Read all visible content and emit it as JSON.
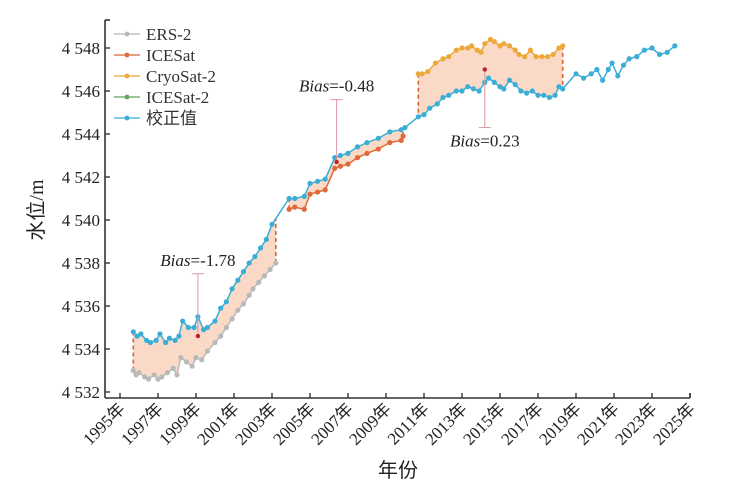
{
  "chart_data": {
    "type": "line",
    "title": "",
    "xlabel": "年份",
    "ylabel": "水位/m",
    "xlim": [
      1994.3,
      2025.6
    ],
    "ylim": [
      4531.8,
      4549.3
    ],
    "x_ticks": [
      1995,
      1997,
      1999,
      2001,
      2003,
      2005,
      2007,
      2009,
      2011,
      2013,
      2015,
      2017,
      2019,
      2021,
      2023,
      2025
    ],
    "x_tick_labels": [
      "1995年",
      "1997年",
      "1999年",
      "2001年",
      "2003年",
      "2005年",
      "2007年",
      "2009年",
      "2011年",
      "2013年",
      "2015年",
      "2017年",
      "2019年",
      "2021年",
      "2023年",
      "2025年"
    ],
    "y_ticks": [
      4532,
      4534,
      4536,
      4538,
      4540,
      4542,
      4544,
      4546,
      4548
    ],
    "y_tick_labels": [
      "4 532",
      "4 534",
      "4 536",
      "4 538",
      "4 540",
      "4 542",
      "4 544",
      "4 546",
      "4 548"
    ],
    "legend_position": "top-left",
    "grid": false,
    "colors": {
      "ERS-2": "#b9b9b9",
      "ICESat": "#e0693a",
      "CryoSat-2": "#eca93a",
      "ICESat-2": "#5fa85f",
      "校正值": "#3aaed6",
      "fill": "#f9d2bd",
      "bias_marker": "#c0202a",
      "bias_line": "#d89aa0"
    },
    "series": [
      {
        "name": "ERS-2",
        "x": [
          1995.7,
          1995.85,
          1996.0,
          1996.3,
          1996.5,
          1996.8,
          1997.0,
          1997.2,
          1997.5,
          1997.8,
          1998.0,
          1998.2,
          1998.5,
          1998.8,
          1999.0,
          1999.3,
          1999.6,
          2000.0,
          2000.3,
          2000.6,
          2000.9,
          2001.2,
          2001.5,
          2001.8,
          2002.0,
          2002.3,
          2002.6,
          2002.9,
          2003.2
        ],
        "y": [
          4533.0,
          4532.8,
          4532.9,
          4532.7,
          4532.6,
          4532.8,
          4532.6,
          4532.7,
          4532.9,
          4533.1,
          4532.8,
          4533.6,
          4533.4,
          4533.2,
          4533.6,
          4533.5,
          4533.9,
          4534.3,
          4534.6,
          4535.0,
          4535.4,
          4535.8,
          4536.1,
          4536.5,
          4536.8,
          4537.1,
          4537.4,
          4537.7,
          4538.0
        ]
      },
      {
        "name": "ICESat",
        "x": [
          2003.9,
          2004.2,
          2004.7,
          2005.0,
          2005.4,
          2005.8,
          2006.3,
          2006.6,
          2007.0,
          2007.5,
          2008.0,
          2008.6,
          2009.2,
          2009.8,
          2009.9
        ],
        "y": [
          4540.5,
          4540.6,
          4540.5,
          4541.2,
          4541.3,
          4541.4,
          4542.4,
          4542.5,
          4542.6,
          4542.9,
          4543.1,
          4543.3,
          4543.6,
          4543.7,
          4543.9
        ]
      },
      {
        "name": "CryoSat-2",
        "x": [
          2010.7,
          2010.9,
          2011.2,
          2011.6,
          2012.0,
          2012.3,
          2012.7,
          2013.0,
          2013.3,
          2013.5,
          2013.8,
          2014.0,
          2014.2,
          2014.5,
          2014.7,
          2015.0,
          2015.2,
          2015.5,
          2015.8,
          2016.0,
          2016.3,
          2016.6,
          2016.9,
          2017.2,
          2017.5,
          2017.8,
          2018.1,
          2018.3
        ],
        "y": [
          4546.8,
          4546.8,
          4546.9,
          4547.3,
          4547.5,
          4547.6,
          4547.9,
          4548.0,
          4548.0,
          4548.1,
          4547.9,
          4547.8,
          4548.2,
          4548.4,
          4548.3,
          4548.1,
          4548.2,
          4548.1,
          4547.9,
          4547.7,
          4547.6,
          4547.9,
          4547.6,
          4547.6,
          4547.6,
          4547.7,
          4548.0,
          4548.1
        ]
      },
      {
        "name": "ICESat-2",
        "x": [],
        "y": []
      },
      {
        "name": "校正值",
        "x": [
          1995.7,
          1995.9,
          1996.1,
          1996.4,
          1996.6,
          1996.9,
          1997.1,
          1997.4,
          1997.6,
          1997.9,
          1998.1,
          1998.3,
          1998.6,
          1998.9,
          1999.1,
          1999.4,
          1999.6,
          2000.0,
          2000.3,
          2000.6,
          2000.9,
          2001.2,
          2001.5,
          2001.8,
          2002.1,
          2002.4,
          2002.7,
          2003.0,
          2003.9,
          2004.2,
          2004.7,
          2005.0,
          2005.4,
          2005.8,
          2006.3,
          2006.6,
          2007.0,
          2007.5,
          2008.0,
          2008.6,
          2009.2,
          2009.8,
          2010.0,
          2010.7,
          2011.0,
          2011.3,
          2011.7,
          2012.0,
          2012.3,
          2012.7,
          2013.0,
          2013.3,
          2013.6,
          2013.9,
          2014.2,
          2014.4,
          2014.7,
          2015.0,
          2015.2,
          2015.5,
          2015.8,
          2016.1,
          2016.4,
          2016.7,
          2017.0,
          2017.3,
          2017.6,
          2017.9,
          2018.1,
          2018.3,
          2019.0,
          2019.4,
          2019.8,
          2020.1,
          2020.4,
          2020.7,
          2020.9,
          2021.2,
          2021.5,
          2021.8,
          2022.2,
          2022.6,
          2023.0,
          2023.4,
          2023.8,
          2024.2
        ],
        "y": [
          4534.8,
          4534.6,
          4534.7,
          4534.4,
          4534.3,
          4534.4,
          4534.7,
          4534.3,
          4534.5,
          4534.4,
          4534.6,
          4535.3,
          4535.0,
          4535.0,
          4535.5,
          4534.9,
          4535.0,
          4535.3,
          4535.9,
          4536.2,
          4536.8,
          4537.2,
          4537.6,
          4538.0,
          4538.3,
          4538.7,
          4539.1,
          4539.8,
          4541.0,
          4541.0,
          4541.1,
          4541.7,
          4541.8,
          4541.9,
          4542.9,
          4543.0,
          4543.1,
          4543.4,
          4543.6,
          4543.8,
          4544.1,
          4544.2,
          4544.3,
          4544.8,
          4544.9,
          4545.2,
          4545.4,
          4545.7,
          4545.8,
          4546.0,
          4546.0,
          4546.2,
          4546.1,
          4546.0,
          4546.4,
          4546.6,
          4546.4,
          4546.2,
          4546.1,
          4546.5,
          4546.3,
          4546.0,
          4545.9,
          4546.0,
          4545.8,
          4545.8,
          4545.7,
          4545.8,
          4546.2,
          4546.1,
          4546.8,
          4546.6,
          4546.8,
          4547.0,
          4546.5,
          4547.0,
          4547.3,
          4546.7,
          4547.2,
          4547.5,
          4547.6,
          4547.9,
          4548.0,
          4547.7,
          4547.8,
          4548.1
        ]
      }
    ],
    "bias_annotations": [
      {
        "prefix": "Bias",
        "value": "=-1.78",
        "x": 1999.1,
        "y": 4534.6,
        "label_y": 4537.5
      },
      {
        "prefix": "Bias",
        "value": "=-0.48",
        "x": 2006.4,
        "y": 4542.7,
        "label_y": 4545.6
      },
      {
        "prefix": "Bias",
        "value": "=0.23",
        "x": 2014.2,
        "y": 4547.0,
        "label_y": 4544.3
      }
    ]
  }
}
